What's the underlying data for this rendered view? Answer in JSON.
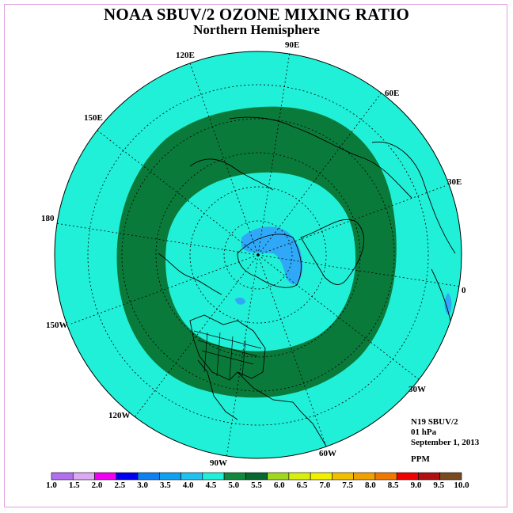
{
  "title": "NOAA SBUV/2 OZONE MIXING RATIO",
  "subtitle": "Northern Hemisphere",
  "longitude_labels": [
    "90E",
    "60E",
    "30E",
    "0",
    "30W",
    "60W",
    "90W",
    "120W",
    "150W",
    "180",
    "150E",
    "120E"
  ],
  "info": {
    "satellite": "N19 SBUV/2",
    "level": "01 hPa",
    "date": "September 1, 2013",
    "unit": "PPM"
  },
  "colorbar": {
    "labels": [
      "1.0",
      "1.5",
      "2.0",
      "2.5",
      "3.0",
      "3.5",
      "4.0",
      "4.5",
      "5.0",
      "5.5",
      "6.0",
      "6.5",
      "7.0",
      "7.5",
      "8.0",
      "8.5",
      "9.0",
      "9.5",
      "10.0"
    ],
    "colors": [
      "#b070f0",
      "#dcaaf0",
      "#f000f0",
      "#0000ee",
      "#1080f0",
      "#10a0f0",
      "#20c0f0",
      "#20f0d8",
      "#108840",
      "#086830",
      "#a0d820",
      "#d8ee10",
      "#f0f000",
      "#f0c000",
      "#f0a000",
      "#f07800",
      "#f00000",
      "#b01010",
      "#7a4a20"
    ]
  },
  "field_colors": {
    "background": "#20f0d8",
    "ring": "#0a7a3a",
    "low": "#30a8f8"
  }
}
